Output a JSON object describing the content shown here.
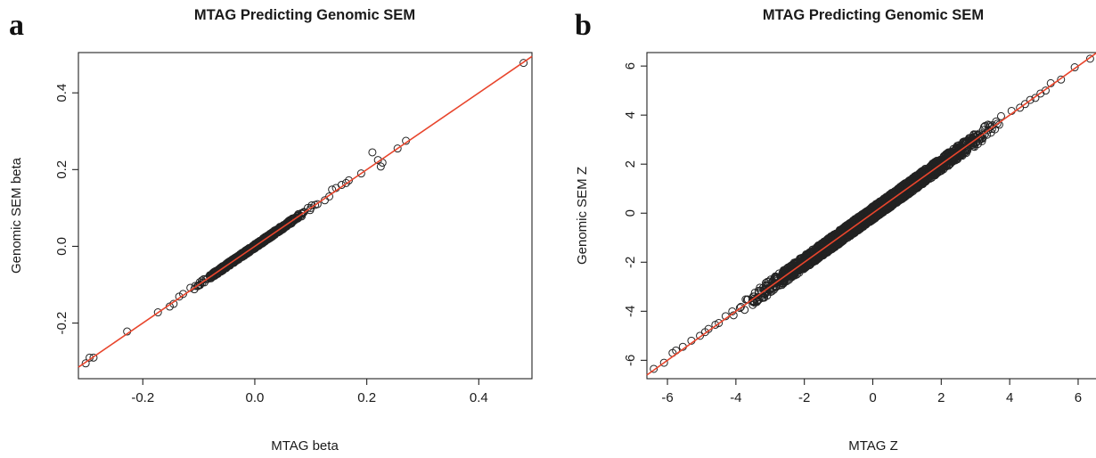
{
  "panels": [
    {
      "letter": "a"
    },
    {
      "letter": "b"
    }
  ],
  "chart_data": [
    {
      "type": "scatter",
      "title": "MTAG Predicting Genomic SEM",
      "xlabel": "MTAG beta",
      "ylabel": "Genomic SEM beta",
      "xlim": [
        -0.315,
        0.495
      ],
      "ylim": [
        -0.345,
        0.505
      ],
      "xticks": [
        -0.2,
        0.0,
        0.2,
        0.4
      ],
      "yticks": [
        -0.2,
        0.0,
        0.2,
        0.4
      ],
      "xtick_labels": [
        "-0.2",
        "0.0",
        "0.2",
        "0.4"
      ],
      "ytick_labels": [
        "-0.2",
        "0.0",
        "0.2",
        "0.4"
      ],
      "grid": false,
      "points": [
        [
          -0.302,
          -0.305
        ],
        [
          -0.295,
          -0.29
        ],
        [
          -0.288,
          -0.29
        ],
        [
          -0.228,
          -0.222
        ],
        [
          -0.173,
          -0.172
        ],
        [
          -0.152,
          -0.157
        ],
        [
          -0.145,
          -0.15
        ],
        [
          -0.135,
          -0.131
        ],
        [
          -0.128,
          -0.124
        ],
        [
          -0.115,
          -0.108
        ],
        [
          -0.108,
          -0.112
        ],
        [
          -0.1,
          -0.102
        ],
        [
          -0.09,
          -0.094
        ],
        [
          -0.08,
          -0.075
        ],
        [
          -0.07,
          -0.072
        ],
        [
          -0.062,
          -0.06
        ],
        [
          -0.048,
          -0.042
        ],
        [
          -0.035,
          -0.038
        ],
        [
          -0.02,
          -0.022
        ],
        [
          -0.01,
          -0.012
        ],
        [
          0.0,
          0.003
        ],
        [
          0.012,
          0.01
        ],
        [
          0.025,
          0.02
        ],
        [
          0.038,
          0.036
        ],
        [
          0.05,
          0.048
        ],
        [
          0.063,
          0.06
        ],
        [
          0.076,
          0.072
        ],
        [
          0.088,
          0.09
        ],
        [
          0.1,
          0.1
        ],
        [
          0.112,
          0.11
        ],
        [
          0.125,
          0.12
        ],
        [
          0.133,
          0.13
        ],
        [
          0.138,
          0.148
        ],
        [
          0.145,
          0.152
        ],
        [
          0.155,
          0.16
        ],
        [
          0.163,
          0.165
        ],
        [
          0.168,
          0.172
        ],
        [
          0.19,
          0.19
        ],
        [
          0.21,
          0.245
        ],
        [
          0.22,
          0.225
        ],
        [
          0.225,
          0.208
        ],
        [
          0.228,
          0.218
        ],
        [
          0.255,
          0.255
        ],
        [
          0.27,
          0.275
        ],
        [
          0.48,
          0.478
        ]
      ],
      "dense_band": {
        "x_range": [
          -0.12,
          0.12
        ],
        "half_width": 0.006
      },
      "fit_line": {
        "intercept": 0.0,
        "slope": 1.0,
        "color": "#e8452c"
      }
    },
    {
      "type": "scatter",
      "title": "MTAG Predicting Genomic SEM",
      "xlabel": "MTAG Z",
      "ylabel": "Genomic SEM Z",
      "xlim": [
        -6.6,
        6.6
      ],
      "ylim": [
        -6.75,
        6.55
      ],
      "xticks": [
        -6,
        -4,
        -2,
        0,
        2,
        4,
        6
      ],
      "yticks": [
        -6,
        -4,
        -2,
        0,
        2,
        4,
        6
      ],
      "xtick_labels": [
        "-6",
        "-4",
        "-2",
        "0",
        "2",
        "4",
        "6"
      ],
      "ytick_labels": [
        "-6",
        "-4",
        "-2",
        "0",
        "2",
        "4",
        "6"
      ],
      "grid": false,
      "points": [
        [
          -6.4,
          -6.35
        ],
        [
          -6.1,
          -6.1
        ],
        [
          -5.85,
          -5.7
        ],
        [
          -5.75,
          -5.6
        ],
        [
          -5.55,
          -5.45
        ],
        [
          -5.3,
          -5.2
        ],
        [
          -5.05,
          -5.0
        ],
        [
          -4.9,
          -4.85
        ],
        [
          -4.8,
          -4.72
        ],
        [
          -4.6,
          -4.55
        ],
        [
          -4.5,
          -4.48
        ],
        [
          -4.3,
          -4.2
        ],
        [
          4.3,
          4.3
        ],
        [
          4.45,
          4.45
        ],
        [
          4.6,
          4.62
        ],
        [
          4.75,
          4.7
        ],
        [
          4.9,
          4.88
        ],
        [
          5.05,
          5.0
        ],
        [
          5.2,
          5.3
        ],
        [
          5.5,
          5.45
        ],
        [
          5.9,
          5.95
        ],
        [
          6.35,
          6.3
        ]
      ],
      "dense_band": {
        "x_range": [
          -4.5,
          4.5
        ],
        "half_width": 0.28
      },
      "fit_line": {
        "intercept": 0.0,
        "slope": 1.0,
        "color": "#e8452c"
      }
    }
  ]
}
